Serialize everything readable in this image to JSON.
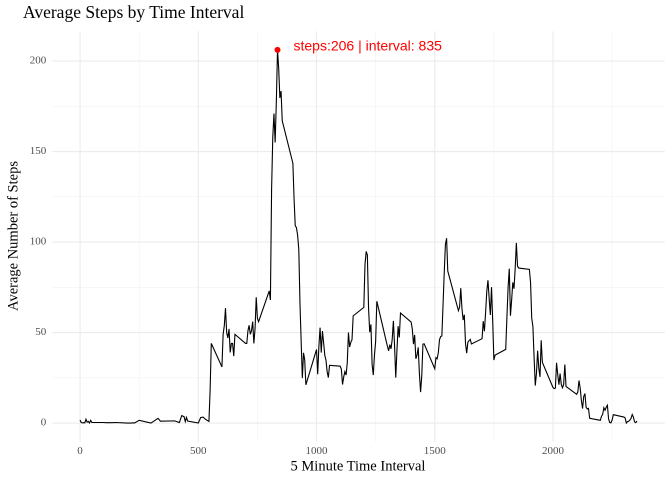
{
  "chart_data": {
    "type": "line",
    "title": "Average Steps by Time Interval",
    "x_label": "5 Minute Time Interval",
    "y_label": "Average Number of Steps",
    "xlim": [
      -117.75,
      2472.75
    ],
    "ylim": [
      -10.31,
      216.48
    ],
    "xticks": [
      0,
      500,
      1000,
      1500,
      2000
    ],
    "yticks": [
      0,
      50,
      100,
      150,
      200
    ],
    "x_minor_grid": [
      250,
      750,
      1250,
      1750,
      2250
    ],
    "y_minor_grid": [
      25,
      75,
      125,
      175
    ],
    "grid": true,
    "x": [
      0,
      5,
      10,
      15,
      20,
      25,
      30,
      35,
      40,
      45,
      50,
      100,
      110,
      135,
      150,
      200,
      215,
      225,
      230,
      250,
      300,
      330,
      340,
      400,
      420,
      430,
      440,
      445,
      450,
      455,
      500,
      510,
      520,
      530,
      545,
      550,
      555,
      600,
      605,
      610,
      615,
      620,
      625,
      630,
      635,
      640,
      645,
      650,
      655,
      700,
      705,
      710,
      715,
      720,
      725,
      730,
      735,
      740,
      745,
      750,
      755,
      800,
      805,
      810,
      815,
      820,
      825,
      830,
      835,
      840,
      845,
      850,
      855,
      900,
      905,
      910,
      915,
      920,
      925,
      930,
      935,
      940,
      945,
      950,
      955,
      1000,
      1005,
      1010,
      1015,
      1020,
      1025,
      1030,
      1035,
      1040,
      1045,
      1050,
      1055,
      1100,
      1105,
      1110,
      1115,
      1120,
      1125,
      1130,
      1135,
      1140,
      1145,
      1150,
      1155,
      1200,
      1205,
      1210,
      1215,
      1220,
      1225,
      1230,
      1235,
      1240,
      1245,
      1250,
      1255,
      1300,
      1305,
      1310,
      1315,
      1320,
      1325,
      1330,
      1335,
      1340,
      1345,
      1350,
      1355,
      1400,
      1405,
      1410,
      1415,
      1420,
      1425,
      1430,
      1435,
      1440,
      1445,
      1450,
      1455,
      1500,
      1505,
      1510,
      1515,
      1520,
      1525,
      1530,
      1535,
      1540,
      1545,
      1550,
      1555,
      1600,
      1605,
      1610,
      1615,
      1620,
      1625,
      1630,
      1635,
      1640,
      1645,
      1650,
      1655,
      1700,
      1705,
      1710,
      1715,
      1720,
      1725,
      1730,
      1735,
      1740,
      1745,
      1750,
      1755,
      1800,
      1805,
      1810,
      1815,
      1820,
      1825,
      1830,
      1835,
      1840,
      1845,
      1850,
      1855,
      1900,
      1905,
      1910,
      1915,
      1920,
      1925,
      1930,
      1935,
      1940,
      1945,
      1950,
      1955,
      2000,
      2005,
      2010,
      2015,
      2020,
      2025,
      2030,
      2035,
      2040,
      2045,
      2050,
      2055,
      2100,
      2105,
      2110,
      2115,
      2120,
      2125,
      2130,
      2135,
      2140,
      2145,
      2150,
      2155,
      2200,
      2205,
      2210,
      2215,
      2220,
      2225,
      2230,
      2235,
      2240,
      2245,
      2250,
      2255,
      2300,
      2305,
      2310,
      2315,
      2320,
      2325,
      2330,
      2335,
      2340,
      2345,
      2350,
      2355
    ],
    "series": [
      {
        "name": "steps",
        "color": "#000000",
        "values": [
          1.7,
          0.3,
          0.1,
          0.2,
          0.1,
          2.1,
          0.5,
          0.9,
          0,
          1.5,
          0.3,
          0.3,
          0.2,
          0.2,
          0.3,
          0,
          0,
          0.1,
          0,
          1.5,
          0,
          2.6,
          1,
          1.2,
          0.3,
          4.1,
          3.5,
          0.8,
          3.1,
          1.1,
          0,
          3,
          3.3,
          2.1,
          0.9,
          18,
          44,
          31,
          49,
          53.8,
          63.5,
          50,
          47,
          52,
          39,
          44,
          44,
          37,
          49,
          44,
          44,
          51,
          54,
          49,
          51,
          56,
          44,
          52,
          69.5,
          57.8,
          56,
          73,
          68,
          129,
          158,
          171,
          155,
          177,
          206.17,
          195.9,
          179.6,
          183.4,
          167,
          143.5,
          124,
          109,
          108,
          103.7,
          95.9,
          66.2,
          45.2,
          24.8,
          38.8,
          34.98,
          21.1,
          40.6,
          27,
          42.4,
          52.7,
          38.9,
          50.8,
          44.3,
          37.4,
          34.7,
          28.3,
          25.1,
          31.9,
          31.4,
          29.7,
          21.3,
          25.5,
          28.4,
          26.5,
          33.4,
          49.98,
          42,
          44.6,
          46,
          59.2,
          63.9,
          87.7,
          94.8,
          92.8,
          63.4,
          50.2,
          54.5,
          32.4,
          26.5,
          37.7,
          45.1,
          67.3,
          42.3,
          39.9,
          43.3,
          40.98,
          46.2,
          56.4,
          42.8,
          25.1,
          39.97,
          53.5,
          47.3,
          60.8,
          55.8,
          51.96,
          43.6,
          48.7,
          35.5,
          37.5,
          41.8,
          27.5,
          17.1,
          26.1,
          43.6,
          43.8,
          30,
          36.1,
          35.5,
          38.8,
          46,
          47.8,
          48.1,
          65.3,
          82.9,
          98.7,
          102.1,
          83.96,
          62.1,
          64.1,
          74.5,
          63.2,
          56.9,
          59.8,
          43.9,
          38.6,
          44.7,
          45.5,
          46.2,
          43.7,
          46.6,
          56.3,
          50.7,
          61.2,
          72.7,
          78.9,
          68.9,
          59.7,
          75.1,
          56.5,
          34.8,
          37.5,
          40.7,
          58,
          74.7,
          85.3,
          59.3,
          67.8,
          77.7,
          74.2,
          85.3,
          99.5,
          86.6,
          85.6,
          84.9,
          77.8,
          58,
          53.4,
          36.3,
          20.7,
          27.4,
          40,
          30.2,
          25.5,
          45.7,
          33.5,
          19.6,
          19,
          19.3,
          33.3,
          26.8,
          21.2,
          27.3,
          21.3,
          19.5,
          21.3,
          32.3,
          20.2,
          15.9,
          17.2,
          23.5,
          19.2,
          12.5,
          8,
          14.7,
          16.3,
          8.7,
          7.8,
          8.1,
          2.6,
          1.5,
          3.7,
          4.8,
          8.5,
          7.1,
          8.7,
          9.8,
          2.2,
          0.3,
          0.1,
          1.6,
          4.6,
          3.3,
          2.8,
          0,
          0.8,
          0.96,
          1.6,
          2.6,
          4.7,
          3.3,
          0.6,
          0.2,
          1.1
        ]
      }
    ],
    "highlight": {
      "x": 835,
      "y": 206.17,
      "color": "#ff0000",
      "label": "steps:206 | interval: 835"
    }
  }
}
